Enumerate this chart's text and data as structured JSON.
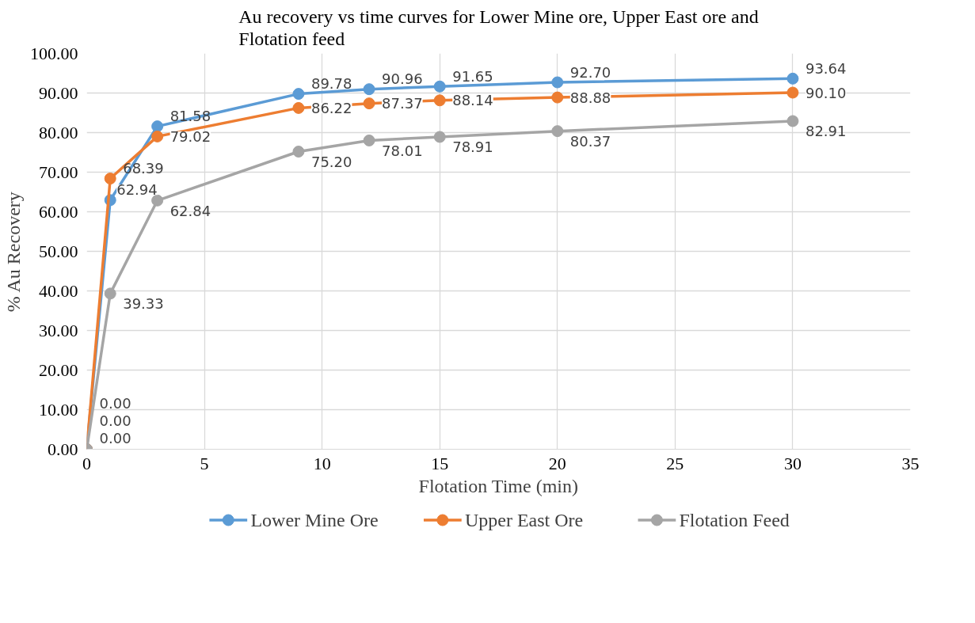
{
  "chart_data": {
    "type": "line",
    "title": "Au recovery vs time curves for Lower Mine ore, Upper East ore and Flotation feed",
    "xlabel": "Flotation Time (min)",
    "ylabel": "% Au Recovery",
    "x": [
      0,
      1,
      3,
      9,
      12,
      15,
      20,
      30
    ],
    "series": [
      {
        "name": "Lower Mine Ore",
        "color": "#5b9bd5",
        "values": [
          0,
          62.94,
          81.58,
          89.78,
          90.96,
          91.65,
          92.7,
          93.64
        ],
        "value_labels": [
          "0.00",
          "62.94",
          "81.58",
          "89.78",
          "90.96",
          "91.65",
          "92.70",
          "93.64"
        ]
      },
      {
        "name": "Upper East Ore",
        "color": "#ed7d31",
        "values": [
          0,
          68.39,
          79.02,
          86.22,
          87.37,
          88.14,
          88.88,
          90.1
        ],
        "value_labels": [
          "0.00",
          "68.39",
          "79.02",
          "86.22",
          "87.37",
          "88.14",
          "88.88",
          "90.10"
        ]
      },
      {
        "name": "Flotation Feed",
        "color": "#a5a5a5",
        "values": [
          0,
          39.33,
          62.84,
          75.2,
          78.01,
          78.91,
          80.37,
          82.91
        ],
        "value_labels": [
          "0.00",
          "39.33",
          "62.84",
          "75.20",
          "78.01",
          "78.91",
          "80.37",
          "82.91"
        ]
      }
    ],
    "xlim": [
      0,
      35
    ],
    "xticks": [
      0,
      5,
      10,
      15,
      20,
      25,
      30,
      35
    ],
    "ylim": [
      0,
      100
    ],
    "yticks": [
      {
        "value": 0,
        "label": "0.00"
      },
      {
        "value": 10,
        "label": "10.00"
      },
      {
        "value": 20,
        "label": "20.00"
      },
      {
        "value": 30,
        "label": "30.00"
      },
      {
        "value": 40,
        "label": "40.00"
      },
      {
        "value": 50,
        "label": "50.00"
      },
      {
        "value": 60,
        "label": "60.00"
      },
      {
        "value": 70,
        "label": "70.00"
      },
      {
        "value": 80,
        "label": "80.00"
      },
      {
        "value": 90,
        "label": "90.00"
      },
      {
        "value": 100,
        "label": "100.00"
      }
    ],
    "grid": true,
    "legend": "bottom",
    "marker": "circle",
    "line_style": "solid"
  }
}
